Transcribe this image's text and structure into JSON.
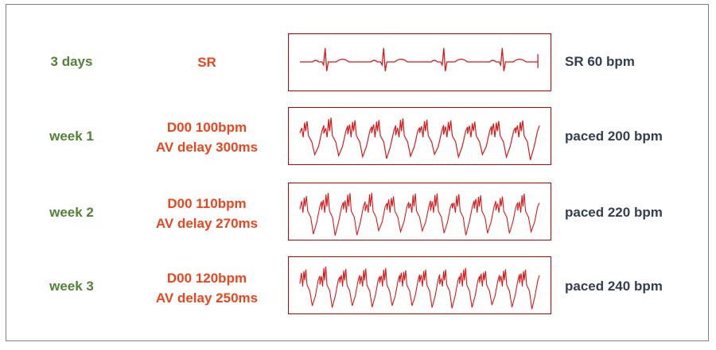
{
  "colors": {
    "period": "#538135",
    "setting": "#e8461e",
    "rate": "#333f50",
    "trace": "#d81818",
    "strip_border": "#c00000",
    "frame": "#7f7f7f"
  },
  "rows": [
    {
      "period": "3 days",
      "setting_lines": [
        "SR"
      ],
      "rate": "SR 60 bpm",
      "trace_type": "sinus"
    },
    {
      "period": "week 1",
      "setting_lines": [
        "D00 100bpm",
        "AV delay 300ms"
      ],
      "rate": "paced 200 bpm",
      "trace_type": "paced"
    },
    {
      "period": "week 2",
      "setting_lines": [
        "D00 110bpm",
        "AV delay 270ms"
      ],
      "rate": "paced 220 bpm",
      "trace_type": "paced"
    },
    {
      "period": "week 3",
      "setting_lines": [
        "D00 120bpm",
        "AV delay 250ms"
      ],
      "rate": "paced 240 bpm",
      "trace_type": "paced"
    }
  ]
}
